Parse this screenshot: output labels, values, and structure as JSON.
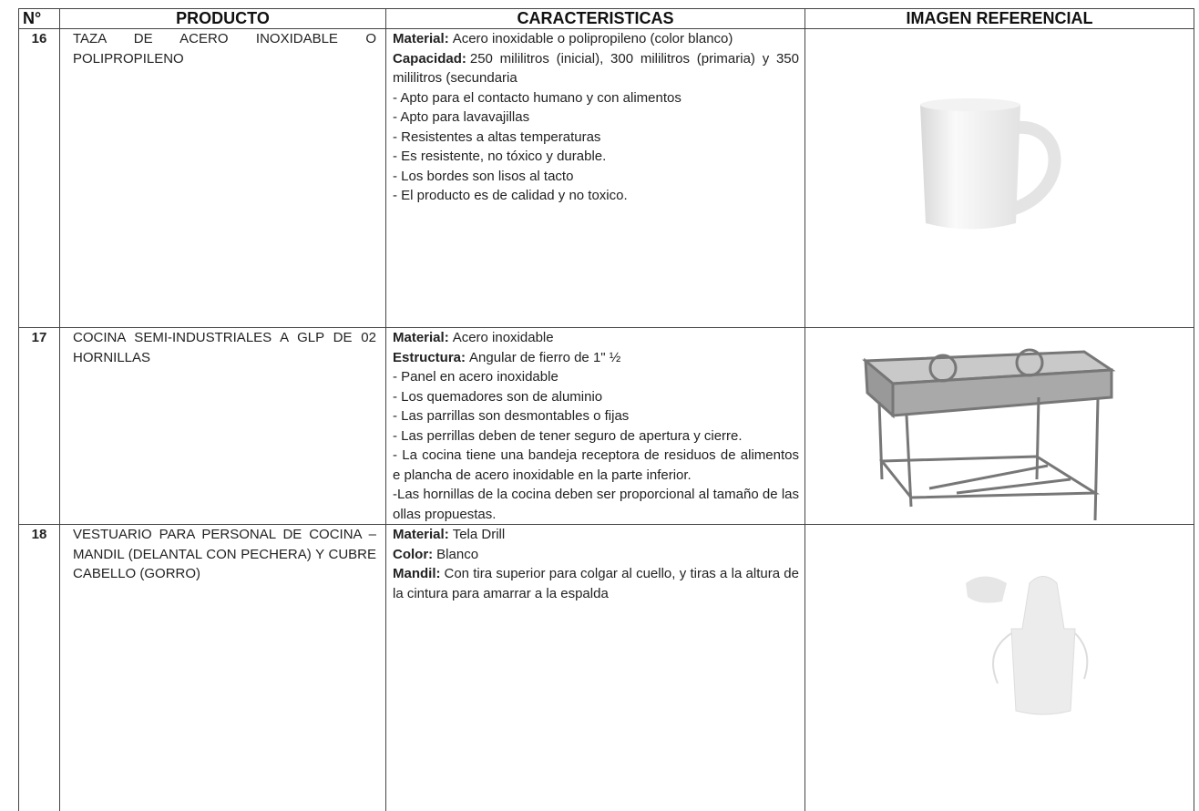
{
  "table": {
    "headers": [
      "N°",
      "PRODUCTO",
      "CARACTERISTICAS",
      "IMAGEN REFERENCIAL"
    ],
    "rows": [
      {
        "number": "16",
        "product": "TAZA DE  ACERO INOXIDABLE O POLIPROPILENO",
        "features": [
          {
            "label": "Material:",
            "text": "Acero inoxidable o polipropileno (color blanco)"
          },
          {
            "label": "Capacidad:",
            "text": "250 mililitros (inicial), 300 mililitros (primaria) y 350 mililitros (secundaria"
          },
          {
            "text": "- Apto para el contacto humano y con alimentos"
          },
          {
            "text": "- Apto para lavavajillas"
          },
          {
            "text": "- Resistentes a altas temperaturas"
          },
          {
            "text": "- Es resistente, no tóxico y durable."
          },
          {
            "text": "- Los bordes son lisos al tacto"
          },
          {
            "text": "- El producto es de calidad y no toxico."
          }
        ]
      },
      {
        "number": "17",
        "product": "COCINA SEMI-INDUSTRIALES A GLP DE 02 HORNILLAS",
        "features": [
          {
            "label": "Material:",
            "text": "Acero inoxidable"
          },
          {
            "label": "Estructura:",
            "text": "Angular de fierro de 1\" ½"
          },
          {
            "text": "- Panel en acero inoxidable"
          },
          {
            "text": "- Los quemadores son de aluminio"
          },
          {
            "text": "- Las parrillas son desmontables o fijas"
          },
          {
            "text": "- Las perrillas deben de tener seguro de apertura y cierre."
          },
          {
            "text": "- La cocina tiene una bandeja receptora de residuos de alimentos e plancha de acero inoxidable en la parte inferior."
          },
          {
            "text": "-Las hornillas de la cocina deben ser proporcional al tamaño de las ollas propuestas."
          }
        ]
      },
      {
        "number": "18",
        "product": "VESTUARIO PARA PERSONAL DE COCINA – MANDIL (DELANTAL CON PECHERA) Y CUBRE CABELLO (GORRO)",
        "features": [
          {
            "label": "Material:",
            "text": "Tela Drill"
          },
          {
            "label": "Color:",
            "text": "Blanco"
          },
          {
            "label": "Mandil:",
            "text": "Con tira superior para colgar al cuello, y tiras a la altura de la cintura para amarrar a la espalda"
          }
        ]
      }
    ]
  }
}
